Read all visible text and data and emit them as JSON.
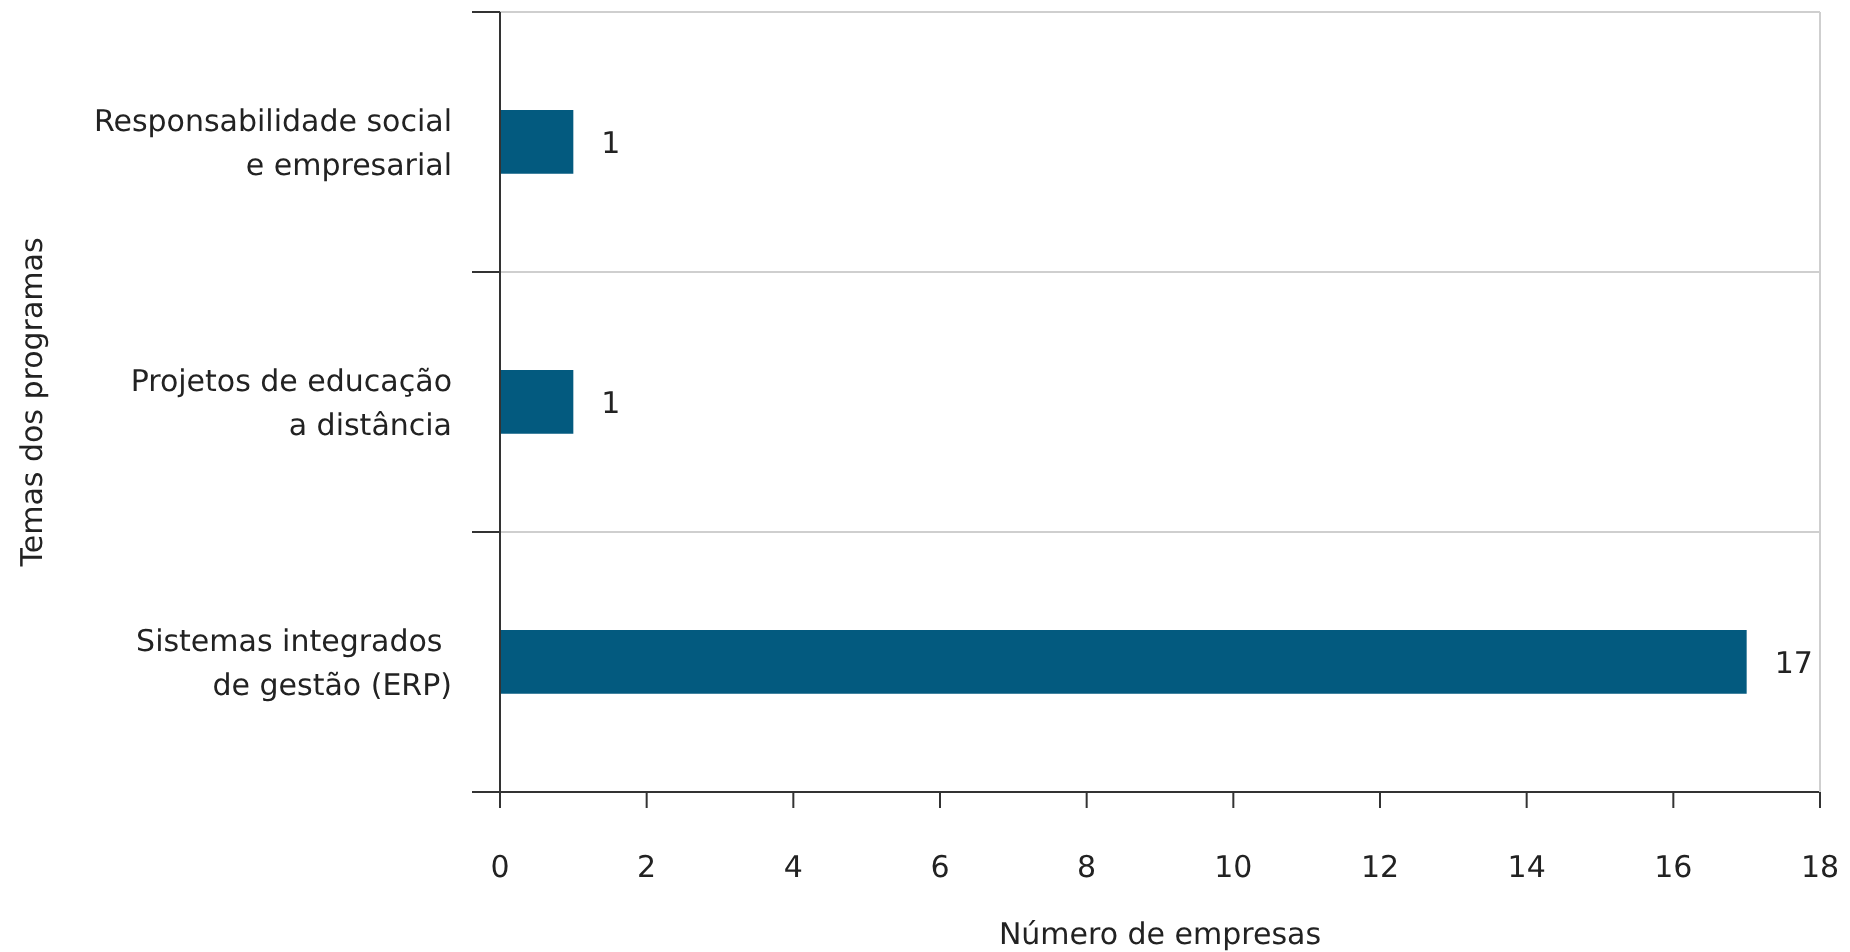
{
  "chart_data": {
    "type": "bar",
    "orientation": "horizontal",
    "xlabel": "Número de empresas",
    "ylabel": "Temas dos programas",
    "categories": [
      "Responsabilidade social\ne empresarial",
      "Projetos de educação\na distância",
      "Sistemas integrados \nde gestão (ERP)"
    ],
    "values": [
      1,
      1,
      17
    ],
    "color": "#035a7f",
    "xlim": [
      0,
      18
    ],
    "xticks": [
      0,
      2,
      4,
      6,
      8,
      10,
      12,
      14,
      16,
      18
    ],
    "grid": "y",
    "data_labels": true
  }
}
